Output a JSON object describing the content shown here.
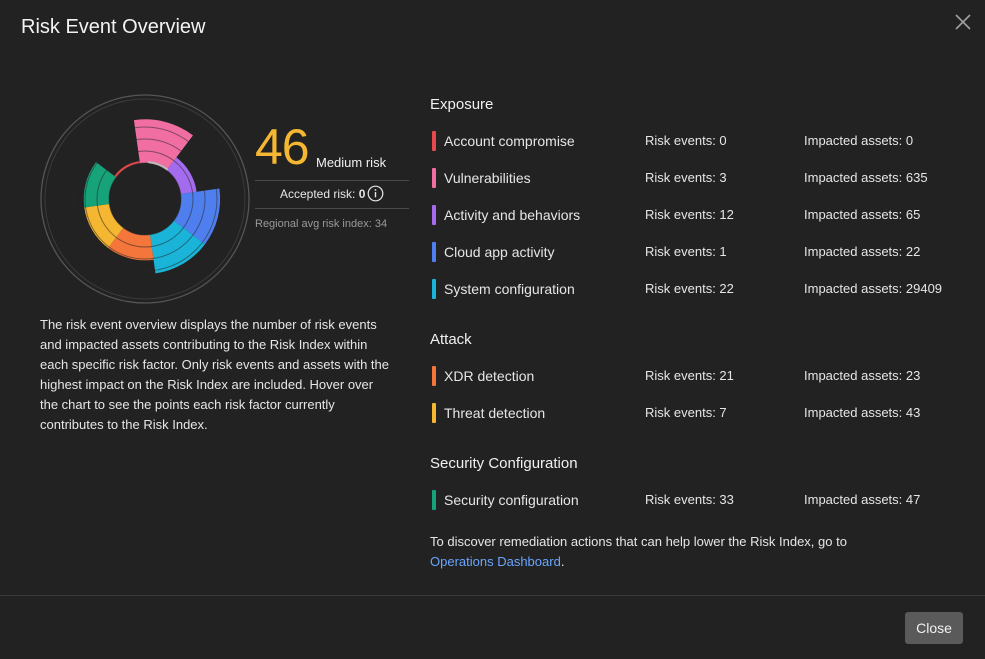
{
  "dialog": {
    "title": "Risk Event Overview",
    "close_label": "Close"
  },
  "score": {
    "value": "46",
    "level": "Medium risk",
    "accepted_prefix": "Accepted risk: ",
    "accepted_value": "0",
    "regional": "Regional avg risk index: 34",
    "color": "#f5b731"
  },
  "description": "The risk event overview displays the number of risk events and impacted assets contributing to the Risk Index within each specific risk factor. Only risk events and assets with the highest impact on the Risk Index are included. Hover over the chart to see the points each risk factor currently contributes to the Risk Index.",
  "sections": [
    {
      "title": "Exposure",
      "rows": [
        {
          "name": "Account compromise",
          "events": "Risk events: 0",
          "assets": "Impacted assets: 0",
          "color": "#e5484d"
        },
        {
          "name": "Vulnerabilities",
          "events": "Risk events: 3",
          "assets": "Impacted assets: 635",
          "color": "#f06ea1"
        },
        {
          "name": "Activity and behaviors",
          "events": "Risk events: 12",
          "assets": "Impacted assets: 65",
          "color": "#a46bef"
        },
        {
          "name": "Cloud app activity",
          "events": "Risk events: 1",
          "assets": "Impacted assets: 22",
          "color": "#4f7fef"
        },
        {
          "name": "System configuration",
          "events": "Risk events: 22",
          "assets": "Impacted assets: 29409",
          "color": "#19b4d8"
        }
      ]
    },
    {
      "title": "Attack",
      "rows": [
        {
          "name": "XDR detection",
          "events": "Risk events: 21",
          "assets": "Impacted assets: 23",
          "color": "#f4763b"
        },
        {
          "name": "Threat detection",
          "events": "Risk events: 7",
          "assets": "Impacted assets: 43",
          "color": "#f5b731"
        }
      ]
    },
    {
      "title": "Security Configuration",
      "rows": [
        {
          "name": "Security configuration",
          "events": "Risk events: 33",
          "assets": "Impacted assets: 47",
          "color": "#17a37a"
        }
      ]
    }
  ],
  "remediation": {
    "text": "To discover remediation actions that can help lower the Risk Index, go to",
    "link": "Operations Dashboard",
    "suffix": "."
  },
  "chart_data": {
    "type": "polar-area",
    "segments": [
      {
        "name": "Vulnerabilities",
        "color": "#f06ea1",
        "level": 0.95
      },
      {
        "name": "Activity and behaviors",
        "color": "#a46bef",
        "level": 0.35
      },
      {
        "name": "Cloud app activity",
        "color": "#4f7fef",
        "level": 0.85
      },
      {
        "name": "System configuration",
        "color": "#19b4d8",
        "level": 0.85
      },
      {
        "name": "XDR detection",
        "color": "#f4763b",
        "level": 0.55
      },
      {
        "name": "Threat detection",
        "color": "#f5b731",
        "level": 0.55
      },
      {
        "name": "Security configuration",
        "color": "#17a37a",
        "level": 0.55
      },
      {
        "name": "Account compromise",
        "color": "#e5484d",
        "level": 0.05
      }
    ]
  }
}
